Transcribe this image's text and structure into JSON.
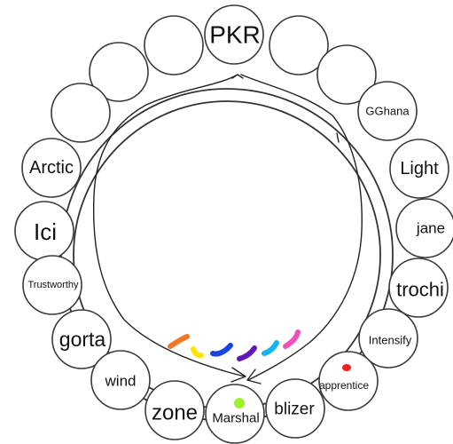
{
  "seats": [
    {
      "label": "PKR"
    },
    {
      "label": ""
    },
    {
      "label": ""
    },
    {
      "label": ""
    },
    {
      "label": "Arctic"
    },
    {
      "label": "Ici"
    },
    {
      "label": "Trustworthy"
    },
    {
      "label": "gorta"
    },
    {
      "label": "wind"
    },
    {
      "label": "zone"
    },
    {
      "label": "Marshal"
    },
    {
      "label": "blizer"
    },
    {
      "label": "apprentice"
    },
    {
      "label": "Intensify"
    },
    {
      "label": "trochi"
    },
    {
      "label": "jane"
    },
    {
      "label": "Light"
    },
    {
      "label": "GGhana"
    },
    {
      "label": ""
    }
  ],
  "colors": {
    "orange": "#f07828",
    "yellow": "#ffe600",
    "blue": "#1844e0",
    "purple": "#6018b8",
    "cyan": "#18b4f0",
    "pink": "#f050b8",
    "lime": "#a0f030",
    "red": "#f02020"
  }
}
